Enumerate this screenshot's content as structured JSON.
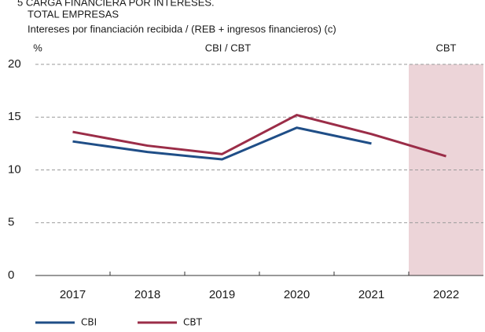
{
  "chart_data": {
    "type": "line",
    "title": "5  CARGA FINANCIERA POR INTERESES.",
    "subtitle": "TOTAL EMPRESAS",
    "description": "Intereses por financiación recibida / (REB + ingresos financieros) (c)",
    "y_label": "%",
    "annotation": "CBI / CBT",
    "highlight": {
      "start": "2022",
      "label": "CBT",
      "color": "#ecd4d8"
    },
    "categories": [
      "2017",
      "2018",
      "2019",
      "2020",
      "2021",
      "2022"
    ],
    "series": [
      {
        "name": "CBI",
        "color": "#1f4e87",
        "values": [
          12.7,
          11.7,
          11.0,
          14.0,
          12.5,
          null
        ]
      },
      {
        "name": "CBT",
        "color": "#9b2d48",
        "values": [
          13.6,
          12.3,
          11.5,
          15.2,
          13.4,
          11.3
        ]
      }
    ],
    "ylim": [
      0,
      20
    ],
    "yticks": [
      0,
      5,
      10,
      15,
      20
    ],
    "grid": true
  }
}
